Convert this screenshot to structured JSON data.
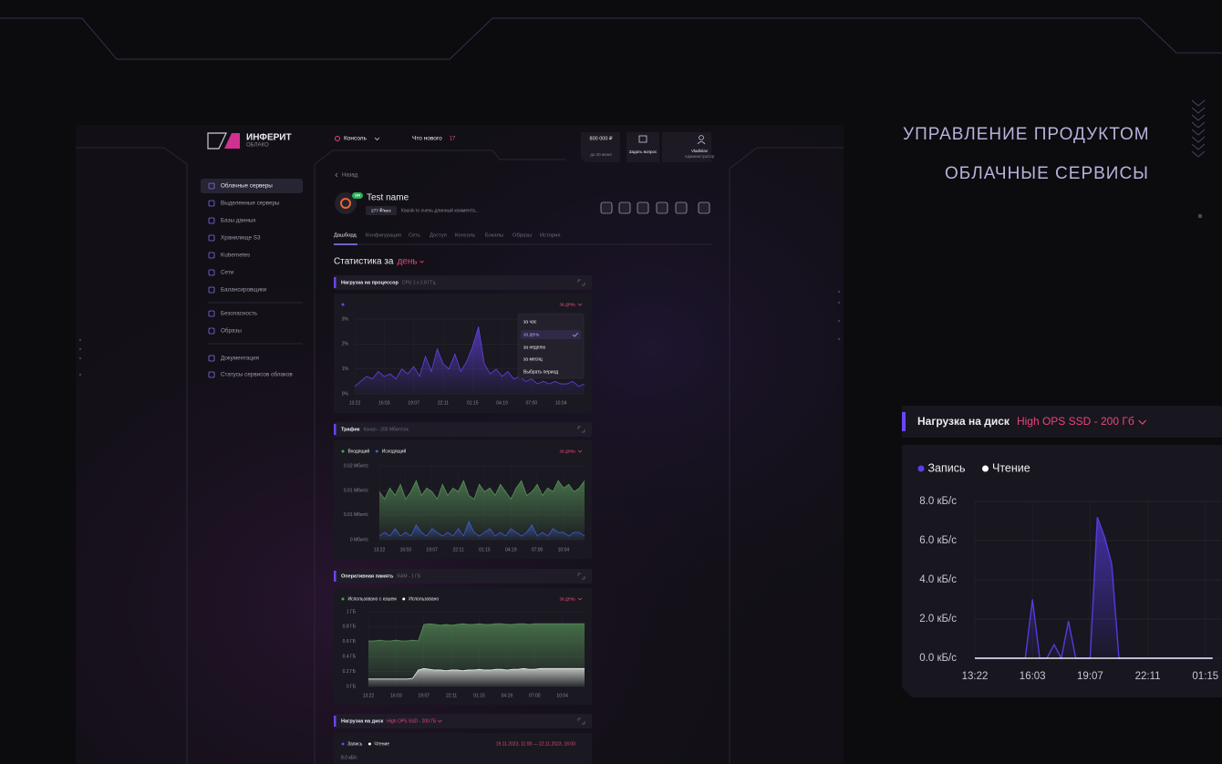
{
  "hero": {
    "title": "УПРАВЛЕНИЕ ПРОДУКТОМ",
    "subtitle": "ОБЛАЧНЫЕ СЕРВИСЫ"
  },
  "app": {
    "logo": {
      "name": "ИНФЕРИТ",
      "tagline": "ОБЛАКО"
    },
    "topbar": {
      "console": "Консоль",
      "whats_new": "Что нового",
      "news_count": "17",
      "balance": "800 000 ₽",
      "balance_note": "до 20 июня",
      "ask": "Задать вопрос",
      "user": "Vladislav",
      "role": "Администратор"
    },
    "sidebar": [
      [
        "Облачные серверы",
        "Выделенные серверы",
        "Базы данных",
        "Хранилище S3",
        "Kubernetes",
        "Сети",
        "Балансировщики"
      ],
      [
        "Безопасность",
        "Образы"
      ],
      [
        "Документация",
        "Статусы сервисов облаков"
      ]
    ],
    "back": "Назад",
    "server": {
      "status": "ON",
      "name": "Test name",
      "price": "277 ₽/мес",
      "comment": "Какой-то очень длинный коммента..."
    },
    "tabs": [
      "Дашборд",
      "Конфигурация",
      "Сеть",
      "Доступ",
      "Консоль",
      "Бэкапы",
      "Образы",
      "История"
    ],
    "stats": {
      "label": "Статистика за",
      "period": "день"
    },
    "panels": [
      {
        "title": "Нагрузка на процессор",
        "subtitle": "CPU 1 x 2.8 ГГц",
        "period": "за день",
        "menu": [
          "за час",
          "за день",
          "за неделю",
          "за месяц",
          "Выбрать период"
        ],
        "chart": {
          "type": "area",
          "categories": [
            "13:22",
            null,
            null,
            null,
            null,
            "16:03",
            null,
            null,
            null,
            null,
            "19:07",
            null,
            null,
            null,
            null,
            "22:11",
            null,
            null,
            null,
            null,
            "01:15",
            null,
            null,
            null,
            null,
            "04:19",
            null,
            null,
            null,
            null,
            "07:00",
            null,
            null,
            null,
            null,
            "10:04",
            null,
            null,
            null,
            null
          ],
          "ylim": [
            0,
            3
          ],
          "yticks": [
            {
              "value": 0,
              "label": "0%"
            },
            {
              "value": 1,
              "label": "1%"
            },
            {
              "value": 2,
              "label": "2%"
            },
            {
              "value": 3,
              "label": "3%"
            }
          ],
          "series": [
            {
              "color": "#6a45f5",
              "values": [
                0.3,
                0.5,
                0.7,
                0.6,
                0.9,
                0.7,
                0.8,
                0.6,
                1.0,
                0.8,
                1.1,
                0.7,
                1.5,
                0.9,
                1.8,
                1.2,
                1.0,
                1.6,
                0.9,
                1.3,
                1.9,
                2.7,
                1.2,
                0.8,
                1.0,
                0.7,
                0.9,
                0.6,
                0.7,
                0.5,
                0.6,
                0.4,
                0.5,
                0.4,
                0.5,
                0.4,
                0.4,
                0.5,
                0.3,
                0.4
              ]
            }
          ]
        }
      },
      {
        "title": "Трафик",
        "subtitle": "Канал - 200 Мбит/сек",
        "period": "за день",
        "chart": {
          "type": "area",
          "categories": [
            "13:22",
            null,
            null,
            null,
            null,
            "16:03",
            null,
            null,
            null,
            null,
            "19:07",
            null,
            null,
            null,
            null,
            "22:11",
            null,
            null,
            null,
            null,
            "01:15",
            null,
            null,
            null,
            null,
            "04:19",
            null,
            null,
            null,
            null,
            "07:00",
            null,
            null,
            null,
            null,
            "10:04",
            null,
            null,
            null,
            null
          ],
          "ylim": [
            0,
            0.02
          ],
          "yticks": [
            {
              "value": 0,
              "label": "0 Мбит/с"
            },
            {
              "value": 0.0067,
              "label": "0.01 Мбит/с"
            },
            {
              "value": 0.0133,
              "label": "0.01 Мбит/с"
            },
            {
              "value": 0.02,
              "label": "0.02 Мбит/с"
            }
          ],
          "series": [
            {
              "name": "Входящий",
              "color": "#5c9a5d",
              "values": [
                0.013,
                0.011,
                0.014,
                0.012,
                0.015,
                0.011,
                0.013,
                0.016,
                0.012,
                0.014,
                0.013,
                0.011,
                0.015,
                0.012,
                0.014,
                0.013,
                0.016,
                0.012,
                0.011,
                0.015,
                0.013,
                0.014,
                0.012,
                0.015,
                0.013,
                0.011,
                0.014,
                0.016,
                0.012,
                0.013,
                0.015,
                0.012,
                0.014,
                0.013,
                0.016,
                0.014,
                0.015,
                0.013,
                0.014,
                0.016
              ]
            },
            {
              "name": "Исходящий",
              "color": "#3f5fd6",
              "values": [
                0.001,
                0.002,
                0.001,
                0.003,
                0.001,
                0.002,
                0.001,
                0.004,
                0.002,
                0.001,
                0.003,
                0.002,
                0.001,
                0.002,
                0.001,
                0.003,
                0.001,
                0.005,
                0.002,
                0.001,
                0.002,
                0.003,
                0.001,
                0.002,
                0.001,
                0.003,
                0.002,
                0.001,
                0.002,
                0.004,
                0.001,
                0.002,
                0.001,
                0.003,
                0.002,
                0.002,
                0.001,
                0.002,
                0.002,
                0.001
              ]
            }
          ]
        }
      },
      {
        "title": "Оперативная память",
        "subtitle": "RAM - 1 ГБ",
        "period": "за день",
        "chart": {
          "type": "area",
          "categories": [
            "13:22",
            null,
            null,
            null,
            null,
            "16:03",
            null,
            null,
            null,
            null,
            "19:07",
            null,
            null,
            null,
            null,
            "22:11",
            null,
            null,
            null,
            null,
            "01:15",
            null,
            null,
            null,
            null,
            "04:19",
            null,
            null,
            null,
            null,
            "07:00",
            null,
            null,
            null,
            null,
            "10:04",
            null,
            null,
            null,
            null
          ],
          "ylim": [
            0,
            1
          ],
          "yticks": [
            {
              "value": 0,
              "label": "0 ГБ"
            },
            {
              "value": 0.2,
              "label": "0.2 ГБ"
            },
            {
              "value": 0.4,
              "label": "0.4 ГБ"
            },
            {
              "value": 0.6,
              "label": "0.6 ГБ"
            },
            {
              "value": 0.8,
              "label": "0.8 ГБ"
            },
            {
              "value": 1,
              "label": "1 ГБ"
            }
          ],
          "series": [
            {
              "name": "Использовано с кэшем",
              "color": "#5c9a5d",
              "values": [
                0.61,
                0.61,
                0.62,
                0.61,
                0.61,
                0.62,
                0.61,
                0.61,
                0.62,
                0.61,
                0.83,
                0.84,
                0.83,
                0.82,
                0.83,
                0.82,
                0.83,
                0.84,
                0.83,
                0.83,
                0.84,
                0.83,
                0.83,
                0.84,
                0.84,
                0.83,
                0.83,
                0.84,
                0.84,
                0.83,
                0.84,
                0.84,
                0.84,
                0.84,
                0.84,
                0.84,
                0.84,
                0.84,
                0.84,
                0.84
              ]
            },
            {
              "name": "Использовано",
              "color": "#ffffff",
              "values": [
                0.1,
                0.1,
                0.1,
                0.1,
                0.1,
                0.1,
                0.1,
                0.1,
                0.11,
                0.22,
                0.24,
                0.23,
                0.22,
                0.22,
                0.21,
                0.22,
                0.22,
                0.21,
                0.22,
                0.22,
                0.23,
                0.22,
                0.22,
                0.23,
                0.23,
                0.22,
                0.23,
                0.23,
                0.24,
                0.23,
                0.23,
                0.24,
                0.24,
                0.24,
                0.24,
                0.24,
                0.24,
                0.24,
                0.24,
                0.24
              ]
            }
          ]
        }
      },
      {
        "title": "Нагрузка на диск",
        "subtitle": "High OPS SSD - 200 ГБ",
        "legend": [
          "Запись",
          "Чтение"
        ],
        "range": "19.11.2023, 11:00 — 22.11.2023, 16:00",
        "y_top": "8.0 кБ/с"
      }
    ]
  },
  "disk_zoom": {
    "title": "Нагрузка на диск",
    "subtitle": "High OPS SSD - 200 Гб",
    "chart": {
      "type": "area",
      "categories": [
        "13:22",
        null,
        null,
        null,
        null,
        null,
        null,
        null,
        "16:03",
        null,
        null,
        null,
        null,
        null,
        null,
        null,
        "19:07",
        null,
        null,
        null,
        null,
        null,
        null,
        null,
        "22:11",
        null,
        null,
        null,
        null,
        null,
        null,
        null,
        "01:15",
        null
      ],
      "ylim": [
        0,
        8
      ],
      "yticks": [
        {
          "value": 0,
          "label": "0.0 кБ/с"
        },
        {
          "value": 2,
          "label": "2.0 кБ/с"
        },
        {
          "value": 4,
          "label": "4.0 кБ/с"
        },
        {
          "value": 6,
          "label": "6.0 кБ/с"
        },
        {
          "value": 8,
          "label": "8.0 кБ/с"
        }
      ],
      "series": [
        {
          "name": "Запись",
          "color": "#5b3df0",
          "values": [
            0,
            0,
            0,
            0,
            0,
            0,
            0,
            0,
            3.0,
            0,
            0,
            0.7,
            0,
            1.9,
            0,
            0,
            0,
            7.2,
            6.2,
            4.8,
            0,
            0,
            0,
            0,
            0,
            0,
            0,
            0,
            0,
            0,
            0,
            0,
            0,
            0
          ]
        },
        {
          "name": "Чтение",
          "color": "#ffffff",
          "values": [
            0,
            0,
            0,
            0,
            0,
            0,
            0,
            0,
            0,
            0,
            0,
            0,
            0,
            0,
            0,
            0,
            0,
            0,
            0,
            0,
            0,
            0,
            0,
            0,
            0,
            0,
            0,
            0,
            0,
            0,
            0,
            0,
            0,
            0
          ]
        }
      ]
    }
  }
}
